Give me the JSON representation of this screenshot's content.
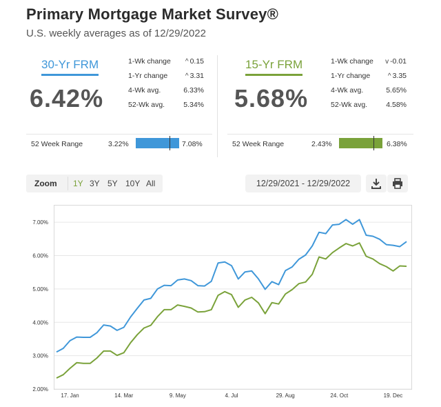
{
  "header": {
    "title": "Primary Mortgage Market Survey®",
    "subtitle": "U.S. weekly averages as of 12/29/2022"
  },
  "fixed30": {
    "label": "30-Yr FRM",
    "rate": "6.42%",
    "stats": [
      {
        "label": "1-Wk change",
        "arrow": "^",
        "value": "0.15"
      },
      {
        "label": "1-Yr change",
        "arrow": "^",
        "value": "3.31"
      },
      {
        "label": "4-Wk avg.",
        "arrow": "",
        "value": "6.33%"
      },
      {
        "label": "52-Wk avg.",
        "arrow": "",
        "value": "5.34%"
      }
    ],
    "range_label": "52 Week Range",
    "range_low": "3.22%",
    "range_high": "7.08%",
    "color": "#3f97d9"
  },
  "fixed15": {
    "label": "15-Yr FRM",
    "rate": "5.68%",
    "stats": [
      {
        "label": "1-Wk change",
        "arrow": "v",
        "value": "-0.01"
      },
      {
        "label": "1-Yr change",
        "arrow": "^",
        "value": "3.35"
      },
      {
        "label": "4-Wk avg.",
        "arrow": "",
        "value": "5.65%"
      },
      {
        "label": "52-Wk avg.",
        "arrow": "",
        "value": "4.58%"
      }
    ],
    "range_label": "52 Week Range",
    "range_low": "2.43%",
    "range_high": "6.38%",
    "color": "#7aa23a"
  },
  "toolbar": {
    "zoom_label": "Zoom",
    "zoom_options": [
      "1Y",
      "3Y",
      "5Y",
      "10Y",
      "All"
    ],
    "active_zoom": "1Y",
    "date_range": "12/29/2021 - 12/29/2022",
    "download_icon": "download-icon",
    "print_icon": "print-icon"
  },
  "chart_data": {
    "type": "line",
    "ylim": [
      2.0,
      7.5
    ],
    "yticks": [
      "2.00%",
      "3.00%",
      "4.00%",
      "5.00%",
      "6.00%",
      "7.00%"
    ],
    "xticks": [
      "17. Jan",
      "14. Mar",
      "9. May",
      "4. Jul",
      "29. Aug",
      "24. Oct",
      "19. Dec"
    ],
    "grid": "horizontal",
    "series": [
      {
        "color": "#3f97d9",
        "values": [
          3.11,
          3.22,
          3.45,
          3.56,
          3.55,
          3.55,
          3.69,
          3.92,
          3.89,
          3.76,
          3.85,
          4.16,
          4.42,
          4.67,
          4.72,
          5.0,
          5.11,
          5.1,
          5.27,
          5.3,
          5.25,
          5.1,
          5.09,
          5.23,
          5.78,
          5.81,
          5.7,
          5.3,
          5.51,
          5.54,
          5.3,
          4.99,
          5.22,
          5.13,
          5.55,
          5.66,
          5.89,
          6.02,
          6.29,
          6.7,
          6.66,
          6.92,
          6.94,
          7.08,
          6.94,
          7.08,
          6.61,
          6.58,
          6.49,
          6.33,
          6.31,
          6.27,
          6.42
        ]
      },
      {
        "color": "#7aa23a",
        "values": [
          2.33,
          2.43,
          2.62,
          2.79,
          2.77,
          2.77,
          2.93,
          3.14,
          3.14,
          3.01,
          3.09,
          3.39,
          3.63,
          3.83,
          3.91,
          4.17,
          4.38,
          4.38,
          4.52,
          4.48,
          4.43,
          4.31,
          4.32,
          4.38,
          4.81,
          4.92,
          4.83,
          4.45,
          4.67,
          4.75,
          4.58,
          4.26,
          4.59,
          4.55,
          4.85,
          4.98,
          5.16,
          5.21,
          5.44,
          5.96,
          5.9,
          6.09,
          6.23,
          6.36,
          6.29,
          6.38,
          5.98,
          5.9,
          5.76,
          5.67,
          5.54,
          5.69,
          5.68
        ]
      }
    ]
  }
}
